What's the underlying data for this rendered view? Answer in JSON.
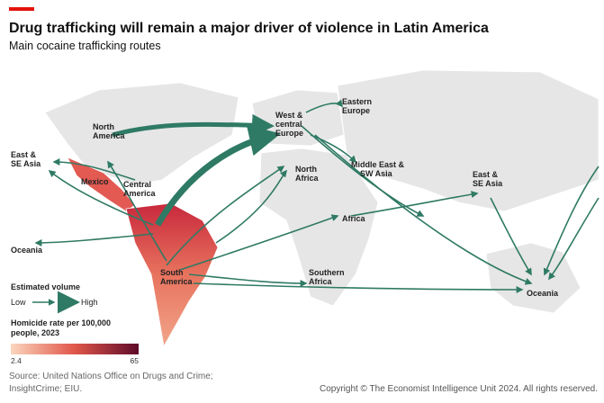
{
  "header": {
    "title": "Drug trafficking will remain a major driver of violence in Latin America",
    "subtitle": "Main cocaine trafficking routes"
  },
  "regions": [
    {
      "lines": [
        "North",
        "America"
      ]
    },
    {
      "lines": [
        "Mexico"
      ]
    },
    {
      "lines": [
        "Central",
        "America"
      ]
    },
    {
      "lines": [
        "South",
        "America"
      ]
    },
    {
      "lines": [
        "West &",
        "central",
        "Europe"
      ]
    },
    {
      "lines": [
        "Eastern",
        "Europe"
      ]
    },
    {
      "lines": [
        "North",
        "Africa"
      ]
    },
    {
      "lines": [
        "Middle East &",
        "SW Asia"
      ]
    },
    {
      "lines": [
        "East &",
        "SE Asia"
      ]
    },
    {
      "lines": [
        "East &",
        "SE Asia"
      ]
    },
    {
      "lines": [
        "Oceania"
      ]
    },
    {
      "lines": [
        "Oceania"
      ]
    },
    {
      "lines": [
        "Africa"
      ]
    },
    {
      "lines": [
        "Southern",
        "Africa"
      ]
    }
  ],
  "legend": {
    "volume_title": "Estimated volume",
    "low": "Low",
    "high": "High",
    "homicide_title": [
      "Homicide rate per 100,000",
      "people, 2023"
    ],
    "scale_min": "2.4",
    "scale_max": "65"
  },
  "footer": {
    "source": [
      "Source: United Nations Office on Drugs and Crime;",
      "InsightCrime; EIU."
    ],
    "copyright": "Copyright © The Economist Intelligence Unit 2024. All rights reserved."
  }
}
